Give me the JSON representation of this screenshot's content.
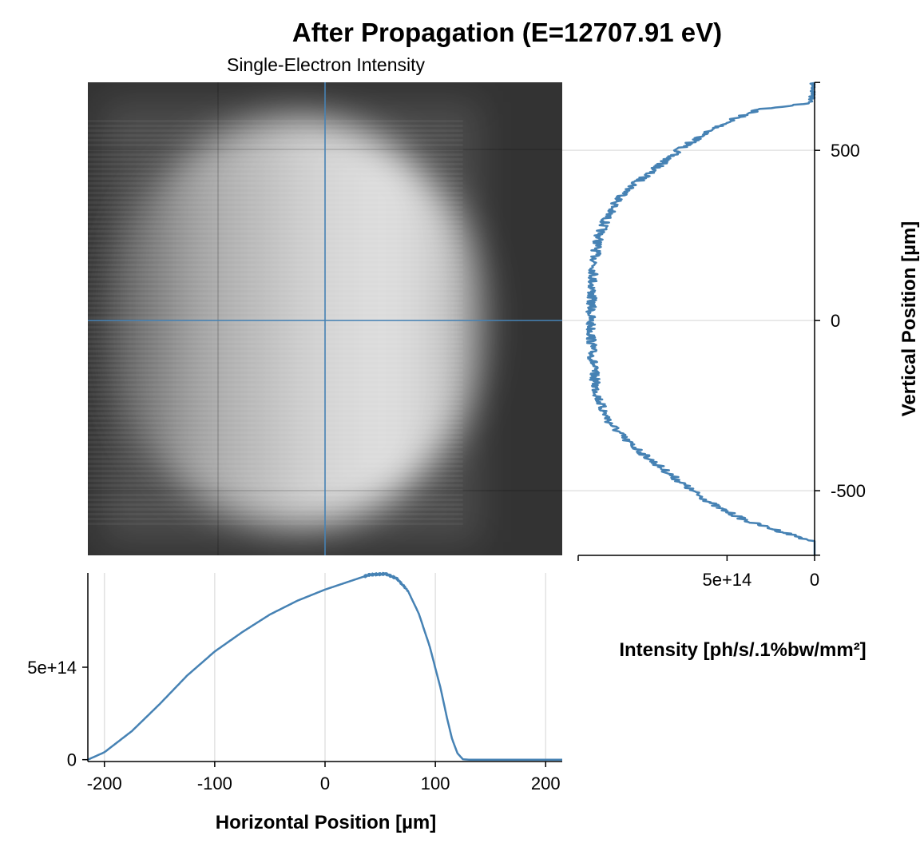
{
  "title": "After Propagation (E=12707.91 eV)",
  "subtitle": "Single-Electron Intensity",
  "colors": {
    "line": "#4682b4",
    "background": "#333333",
    "grid": "#e2e2e2"
  },
  "chart_data": [
    {
      "type": "heatmap",
      "name": "Single-Electron Intensity",
      "x_range": [
        -215,
        215
      ],
      "y_range": [
        -690,
        700
      ],
      "colormap": "grayscale",
      "crosshair": {
        "x": 0,
        "y": 0
      },
      "beam": {
        "x_min": -215,
        "x_max": 125,
        "x_peak": 55,
        "y_min": -650,
        "y_max": 640
      }
    },
    {
      "type": "line",
      "name": "horizontal-cut",
      "xlabel": "Horizontal Position [µm]",
      "x_ticks": [
        "-200",
        "-100",
        "0",
        "100",
        "200"
      ],
      "y_ticks": [
        "0",
        "5e+14"
      ],
      "xlim": [
        -215,
        215
      ],
      "ylim": [
        -10000000000000.0,
        1010000000000000.0
      ],
      "x": [
        -215,
        -200,
        -175,
        -150,
        -125,
        -100,
        -75,
        -50,
        -25,
        0,
        25,
        40,
        55,
        65,
        75,
        85,
        95,
        105,
        110,
        115,
        120,
        125,
        130,
        215
      ],
      "values": [
        0,
        40000000000000.0,
        155000000000000.0,
        300000000000000.0,
        455000000000000.0,
        585000000000000.0,
        690000000000000.0,
        785000000000000.0,
        860000000000000.0,
        920000000000000.0,
        970000000000000.0,
        1000000000000000.0,
        1005000000000000.0,
        980000000000000.0,
        915000000000000.0,
        790000000000000.0,
        610000000000000.0,
        380000000000000.0,
        240000000000000.0,
        115000000000000.0,
        35000000000000.0,
        2000000000000.0,
        0,
        0
      ]
    },
    {
      "type": "line",
      "name": "vertical-cut",
      "xlabel": "Intensity [ph/s/.1%bw/mm²]",
      "ylabel": "Vertical Position [µm]",
      "x_ticks": [
        "5e+14",
        "0"
      ],
      "y_ticks": [
        "500",
        "0",
        "-500"
      ],
      "xlim": [
        1350000000000000.0,
        0
      ],
      "ylim": [
        -690,
        700
      ],
      "y": [
        700,
        640,
        620,
        590,
        550,
        500,
        450,
        400,
        350,
        300,
        250,
        200,
        150,
        100,
        50,
        0,
        -50,
        -100,
        -150,
        -200,
        -250,
        -300,
        -350,
        -400,
        -450,
        -500,
        -550,
        -590,
        -620,
        -650,
        -690
      ],
      "values": [
        0,
        10000000000000.0,
        320000000000000.0,
        470000000000000.0,
        620000000000000.0,
        780000000000000.0,
        900000000000000.0,
        1030000000000000.0,
        1130000000000000.0,
        1190000000000000.0,
        1230000000000000.0,
        1250000000000000.0,
        1260000000000000.0,
        1270000000000000.0,
        1275000000000000.0,
        1280000000000000.0,
        1275000000000000.0,
        1270000000000000.0,
        1260000000000000.0,
        1250000000000000.0,
        1220000000000000.0,
        1170000000000000.0,
        1080000000000000.0,
        960000000000000.0,
        830000000000000.0,
        700000000000000.0,
        550000000000000.0,
        380000000000000.0,
        190000000000000.0,
        0,
        0
      ]
    }
  ]
}
